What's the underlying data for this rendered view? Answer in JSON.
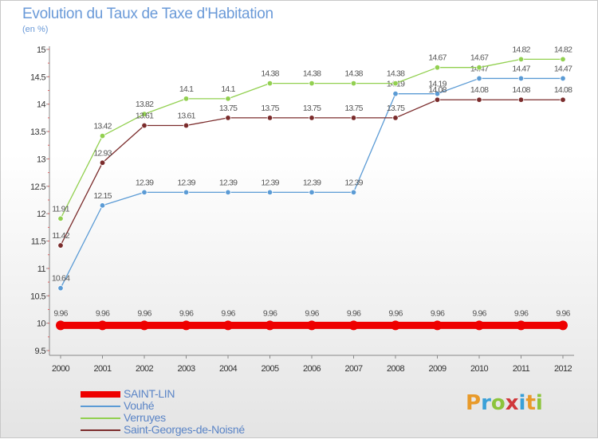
{
  "title": "Evolution du Taux de Taxe d'Habitation",
  "unit": "(en %)",
  "logo": {
    "text": "Proxiti",
    "colors": [
      "#e89a2a",
      "#3aa0d8",
      "#8cc43c",
      "#d0373a",
      "#3aa0d8",
      "#e89a2a",
      "#8cc43c"
    ]
  },
  "chart_data": {
    "type": "line",
    "x": [
      "2000",
      "2001",
      "2002",
      "2003",
      "2004",
      "2005",
      "2006",
      "2007",
      "2008",
      "2009",
      "2010",
      "2011",
      "2012"
    ],
    "ylim": [
      9.5,
      15
    ],
    "yticks": [
      "9.5",
      "10",
      "10.5",
      "11",
      "11.5",
      "12",
      "12.5",
      "13",
      "13.5",
      "14",
      "14.5",
      "15"
    ],
    "grid": false,
    "legend_position": "bottom-left",
    "series": [
      {
        "name": "SAINT-LIN",
        "color": "#ee0000",
        "values": [
          9.96,
          9.96,
          9.96,
          9.96,
          9.96,
          9.96,
          9.96,
          9.96,
          9.96,
          9.96,
          9.96,
          9.96,
          9.96
        ],
        "labels": [
          "9.96",
          "9.96",
          "9.96",
          "9.96",
          "9.96",
          "9.96",
          "9.96",
          "9.96",
          "9.96",
          "9.96",
          "9.96",
          "9.96",
          "9.96"
        ]
      },
      {
        "name": "Vouhé",
        "color": "#5b9bd5",
        "values": [
          10.64,
          12.15,
          12.39,
          12.39,
          12.39,
          12.39,
          12.39,
          12.39,
          14.19,
          14.19,
          14.47,
          14.47,
          14.47
        ],
        "labels": [
          "10.64",
          "12.15",
          "12.39",
          "12.39",
          "12.39",
          "12.39",
          "12.39",
          "12.39",
          "14.19",
          "14.19",
          "14.47",
          "14.47",
          "14.47"
        ]
      },
      {
        "name": "Verruyes",
        "color": "#92d050",
        "values": [
          11.91,
          13.42,
          13.82,
          14.1,
          14.1,
          14.38,
          14.38,
          14.38,
          14.38,
          14.67,
          14.67,
          14.82,
          14.82
        ],
        "labels": [
          "11.91",
          "13.42",
          "13.82",
          "14.1",
          "14.1",
          "14.38",
          "14.38",
          "14.38",
          "14.38",
          "14.67",
          "14.67",
          "14.82",
          "14.82"
        ]
      },
      {
        "name": "Saint-Georges-de-Noisné",
        "color": "#7b2c2c",
        "values": [
          11.42,
          12.93,
          13.61,
          13.61,
          13.75,
          13.75,
          13.75,
          13.75,
          13.75,
          14.08,
          14.08,
          14.08,
          14.08
        ],
        "labels": [
          "11.42",
          "12.93",
          "13.61",
          "13.61",
          "13.75",
          "13.75",
          "13.75",
          "13.75",
          "13.75",
          "14.08",
          "14.08",
          "14.08",
          "14.08"
        ]
      }
    ]
  }
}
